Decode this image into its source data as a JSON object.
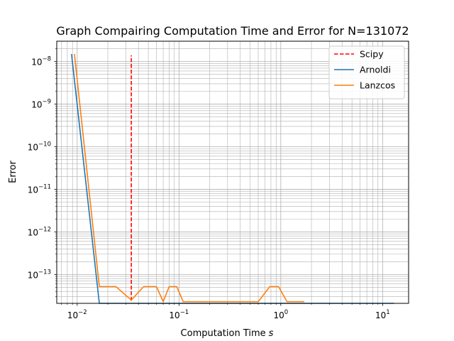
{
  "chart_data": {
    "type": "line",
    "title": "Graph Compairing Computation Time and Error for N=131072",
    "xlabel": "Computation Time",
    "xlabel_symbol": "s",
    "ylabel": "Error",
    "xscale": "log",
    "yscale": "log",
    "xlim": [
      0.0063,
      18
    ],
    "ylim": [
      2.1e-14,
      3e-08
    ],
    "grid": true,
    "grid_which": "both",
    "legend_position": "top-right",
    "x_ticks": [
      {
        "value": 0.01,
        "base": "10",
        "exp": "−2"
      },
      {
        "value": 0.1,
        "base": "10",
        "exp": "−1"
      },
      {
        "value": 1,
        "base": "10",
        "exp": "0"
      },
      {
        "value": 10,
        "base": "10",
        "exp": "1"
      }
    ],
    "y_ticks": [
      {
        "value": 1e-13,
        "base": "10",
        "exp": "−13"
      },
      {
        "value": 1e-12,
        "base": "10",
        "exp": "−12"
      },
      {
        "value": 1e-11,
        "base": "10",
        "exp": "−11"
      },
      {
        "value": 1e-10,
        "base": "10",
        "exp": "−10"
      },
      {
        "value": 1e-09,
        "base": "10",
        "exp": "−9"
      },
      {
        "value": 1e-08,
        "base": "10",
        "exp": "−8"
      }
    ],
    "vline": {
      "name": "Scipy",
      "x": 0.034,
      "y_range": [
        2.4e-14,
        1.4e-08
      ],
      "color": "#ff0000",
      "style": "dashed"
    },
    "series": [
      {
        "name": "Arnoldi",
        "color": "#1f77b4",
        "x": [
          0.0088,
          0.0165,
          13
        ],
        "y": [
          1.5e-08,
          2.1e-14,
          2.1e-14
        ]
      },
      {
        "name": "Lanzcos",
        "color": "#ff7f0e",
        "x": [
          0.0094,
          0.0165,
          0.024,
          0.034,
          0.045,
          0.06,
          0.07,
          0.08,
          0.095,
          0.11,
          0.6,
          0.78,
          0.95,
          1.15,
          1.7
        ],
        "y": [
          1.5e-08,
          5.2e-14,
          5.2e-14,
          2.5e-14,
          5.2e-14,
          5.2e-14,
          2.3e-14,
          5.2e-14,
          5.2e-14,
          2.3e-14,
          2.3e-14,
          5.2e-14,
          5.2e-14,
          2.3e-14,
          2.3e-14
        ]
      }
    ]
  }
}
